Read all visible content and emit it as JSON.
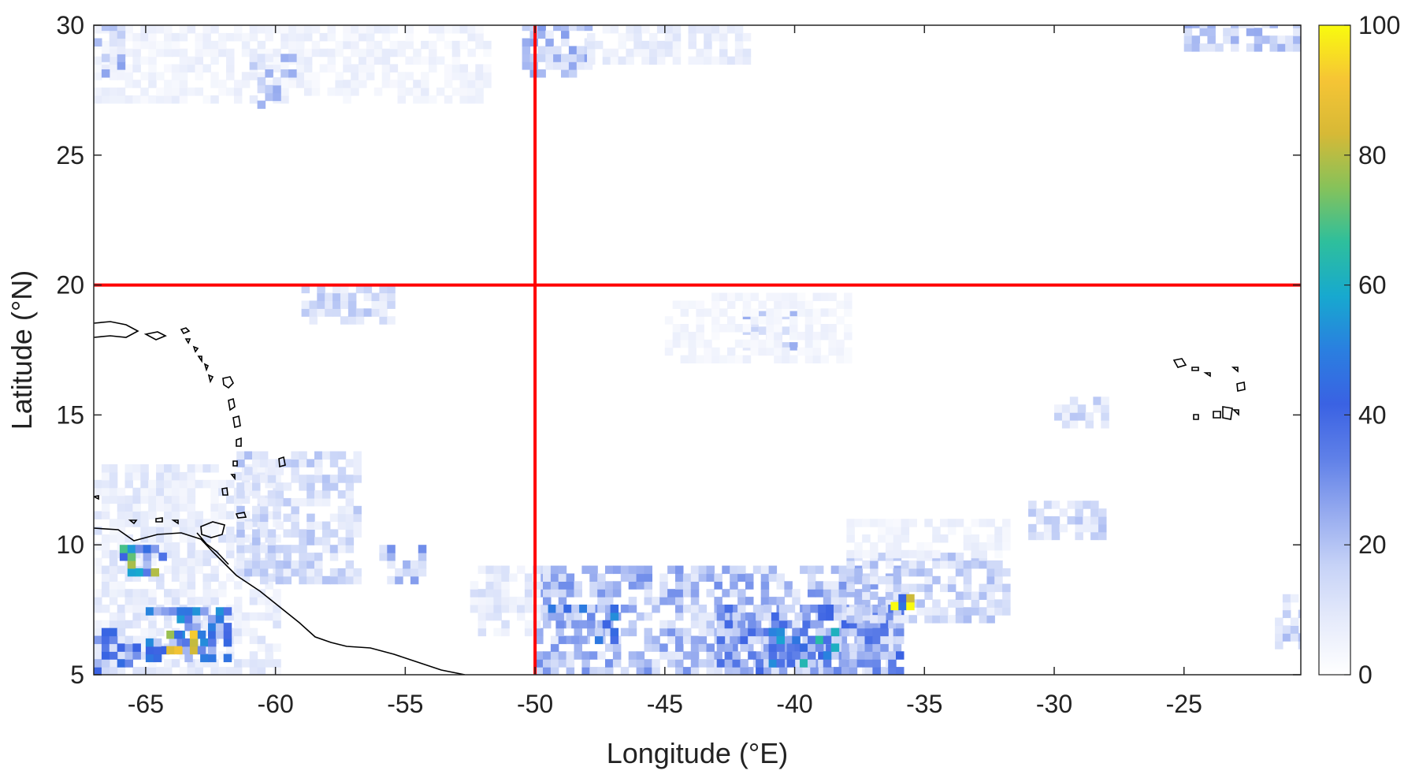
{
  "chart_data": {
    "type": "heatmap",
    "title": "",
    "xlabel": "Longitude (°E)",
    "ylabel": "Latitude (°N)",
    "xlim": [
      -67,
      -20.5
    ],
    "ylim": [
      5,
      30
    ],
    "xticks": [
      -65,
      -60,
      -55,
      -50,
      -45,
      -40,
      -35,
      -30,
      -25
    ],
    "xtick_labels": [
      "-65",
      "-60",
      "-55",
      "-50",
      "-45",
      "-40",
      "-35",
      "-30",
      "-25"
    ],
    "yticks": [
      5,
      10,
      15,
      20,
      25,
      30
    ],
    "ytick_labels": [
      "5",
      "10",
      "15",
      "20",
      "25",
      "30"
    ],
    "colorbar": {
      "range": [
        0,
        100
      ],
      "ticks": [
        0,
        20,
        40,
        60,
        80,
        100
      ],
      "tick_labels": [
        "0",
        "20",
        "40",
        "60",
        "80",
        "100"
      ],
      "colormap": [
        "#ffffff",
        "#e6ebfb",
        "#c7d3f7",
        "#95aaef",
        "#5f80e8",
        "#3a62e3",
        "#2a7fe0",
        "#17a9cf",
        "#2ebf9c",
        "#86c25a",
        "#d7b936",
        "#f6c535",
        "#f9fb0e"
      ]
    },
    "reference_lines": {
      "longitude": -50,
      "latitude": 20,
      "color": "#ff0000"
    },
    "grid": false,
    "regions": [
      {
        "lon": [
          -50,
          -36
        ],
        "lat": [
          5,
          9
        ],
        "level": 22
      },
      {
        "lon": [
          -43,
          -36
        ],
        "lat": [
          5,
          7.5
        ],
        "level": 30
      },
      {
        "lon": [
          -41,
          -38.5
        ],
        "lat": [
          5.3,
          6.6
        ],
        "level": 48
      },
      {
        "lon": [
          -49.5,
          -47
        ],
        "lat": [
          6.2,
          7.5
        ],
        "level": 38
      },
      {
        "lon": [
          -38,
          -32
        ],
        "lat": [
          7,
          9.5
        ],
        "level": 16
      },
      {
        "lon": [
          -36.6,
          -35.6
        ],
        "lat": [
          7.5,
          8.1
        ],
        "level": 80
      },
      {
        "lon": [
          -52.5,
          -50
        ],
        "lat": [
          6.5,
          9
        ],
        "level": 10
      },
      {
        "lon": [
          -38,
          -32
        ],
        "lat": [
          9.5,
          11
        ],
        "level": 6
      },
      {
        "lon": [
          -31,
          -28
        ],
        "lat": [
          10.2,
          11.6
        ],
        "level": 15
      },
      {
        "lon": [
          -67,
          -60
        ],
        "lat": [
          5,
          13
        ],
        "level": 9
      },
      {
        "lon": [
          -61.5,
          -57
        ],
        "lat": [
          8.5,
          13.5
        ],
        "level": 15
      },
      {
        "lon": [
          -65,
          -62
        ],
        "lat": [
          5.5,
          7.5
        ],
        "level": 40
      },
      {
        "lon": [
          -64.2,
          -63
        ],
        "lat": [
          5.8,
          6.6
        ],
        "level": 78
      },
      {
        "lon": [
          -66,
          -64.5
        ],
        "lat": [
          8.8,
          9.8
        ],
        "level": 58
      },
      {
        "lon": [
          -67,
          -65.5
        ],
        "lat": [
          5,
          6.5
        ],
        "level": 34
      },
      {
        "lon": [
          -56,
          -54.5
        ],
        "lat": [
          8.5,
          10
        ],
        "level": 22
      },
      {
        "lon": [
          -59,
          -55.5
        ],
        "lat": [
          18.5,
          20
        ],
        "level": 15
      },
      {
        "lon": [
          -42,
          -40
        ],
        "lat": [
          17.5,
          18.8
        ],
        "level": 18
      },
      {
        "lon": [
          -45,
          -38
        ],
        "lat": [
          17,
          19.5
        ],
        "level": 5
      },
      {
        "lon": [
          -30,
          -28
        ],
        "lat": [
          14.5,
          15.6
        ],
        "level": 14
      },
      {
        "lon": [
          -50.5,
          -48
        ],
        "lat": [
          28,
          30
        ],
        "level": 20
      },
      {
        "lon": [
          -50.2,
          -49.6
        ],
        "lat": [
          28.3,
          28.9
        ],
        "level": 32
      },
      {
        "lon": [
          -67,
          -52
        ],
        "lat": [
          27,
          30
        ],
        "level": 6
      },
      {
        "lon": [
          -48,
          -42
        ],
        "lat": [
          28.5,
          30
        ],
        "level": 8
      },
      {
        "lon": [
          -25,
          -20.5
        ],
        "lat": [
          29,
          30
        ],
        "level": 18
      },
      {
        "lon": [
          -61,
          -59.5
        ],
        "lat": [
          26.8,
          28.8
        ],
        "level": 18
      },
      {
        "lon": [
          -67,
          -66
        ],
        "lat": [
          28,
          30
        ],
        "level": 20
      },
      {
        "lon": [
          -21.5,
          -20.5
        ],
        "lat": [
          6,
          8
        ],
        "level": 16
      }
    ]
  }
}
